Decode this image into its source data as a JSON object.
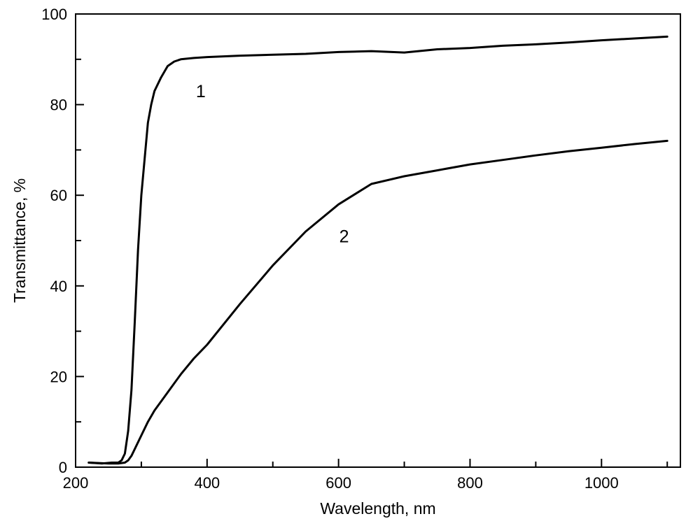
{
  "chart_data": {
    "type": "line",
    "title": "",
    "xlabel": "Wavelength, nm",
    "ylabel": "Transmittance, %",
    "xlim": [
      200,
      1120
    ],
    "ylim": [
      0,
      100
    ],
    "x_ticks": [
      200,
      400,
      600,
      800,
      1000
    ],
    "x_minor_ticks": [
      300,
      500,
      700,
      900,
      1100
    ],
    "y_ticks": [
      0,
      20,
      40,
      60,
      80,
      100
    ],
    "y_minor_ticks": [
      10,
      30,
      50,
      70,
      90
    ],
    "grid": false,
    "legend": "none",
    "line_color": "#000000",
    "series": [
      {
        "label": "1",
        "label_at": [
          383,
          83
        ],
        "x": [
          220,
          240,
          255,
          265,
          270,
          275,
          280,
          285,
          290,
          295,
          300,
          305,
          310,
          315,
          320,
          330,
          340,
          350,
          360,
          380,
          400,
          450,
          500,
          550,
          600,
          650,
          700,
          750,
          800,
          850,
          900,
          950,
          1000,
          1050,
          1100
        ],
        "values": [
          1,
          0.8,
          1,
          1,
          1.5,
          3,
          8,
          17,
          32,
          48,
          60,
          68,
          76,
          80,
          83,
          86,
          88.5,
          89.5,
          90,
          90.3,
          90.5,
          90.8,
          91,
          91.2,
          91.6,
          91.8,
          91.5,
          92.2,
          92.5,
          93,
          93.3,
          93.7,
          94.2,
          94.6,
          95
        ]
      },
      {
        "label": "2",
        "label_at": [
          601,
          51
        ],
        "x": [
          220,
          250,
          265,
          275,
          280,
          285,
          290,
          300,
          310,
          320,
          340,
          360,
          380,
          400,
          450,
          500,
          550,
          600,
          650,
          700,
          750,
          800,
          850,
          900,
          950,
          1000,
          1050,
          1100
        ],
        "values": [
          1,
          0.8,
          0.8,
          1,
          1.5,
          2.5,
          4,
          7,
          10,
          12.5,
          16.5,
          20.5,
          24,
          27,
          36,
          44.5,
          52,
          58,
          62.5,
          64.2,
          65.5,
          66.8,
          67.8,
          68.8,
          69.7,
          70.5,
          71.3,
          72
        ]
      }
    ]
  }
}
